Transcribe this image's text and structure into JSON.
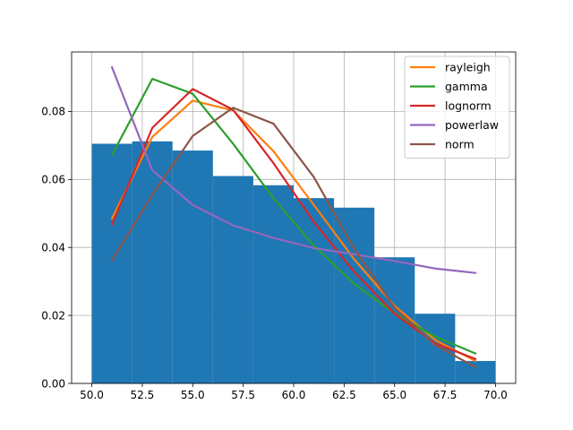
{
  "chart_data": {
    "type": "bar",
    "title": "",
    "xlabel": "",
    "ylabel": "",
    "xlim": [
      49.0,
      71.0
    ],
    "ylim": [
      0.0,
      0.0975
    ],
    "grid": true,
    "legend_position": "top-right",
    "x_ticks": [
      50.0,
      52.5,
      55.0,
      57.5,
      60.0,
      62.5,
      65.0,
      67.5,
      70.0
    ],
    "x_tick_labels": [
      "50.0",
      "52.5",
      "55.0",
      "57.5",
      "60.0",
      "62.5",
      "65.0",
      "67.5",
      "70.0"
    ],
    "y_ticks": [
      0.0,
      0.02,
      0.04,
      0.06,
      0.08
    ],
    "y_tick_labels": [
      "0.00",
      "0.02",
      "0.04",
      "0.06",
      "0.08"
    ],
    "histogram": {
      "color": "#1f77b4",
      "bin_edges": [
        50,
        52,
        54,
        56,
        58,
        60,
        62,
        64,
        66,
        68,
        70
      ],
      "values": [
        0.0705,
        0.0712,
        0.0685,
        0.061,
        0.0583,
        0.0545,
        0.0517,
        0.0371,
        0.0205,
        0.0066
      ]
    },
    "x": [
      51,
      53,
      55,
      57,
      59,
      61,
      63,
      65,
      67,
      69
    ],
    "series": [
      {
        "name": "rayleigh",
        "color": "#ff7f0e",
        "values": [
          0.0485,
          0.0725,
          0.0832,
          0.0803,
          0.0683,
          0.0525,
          0.0365,
          0.0228,
          0.0128,
          0.0066
        ]
      },
      {
        "name": "gamma",
        "color": "#2ca02c",
        "values": [
          0.0672,
          0.0896,
          0.0852,
          0.0705,
          0.0545,
          0.0405,
          0.0293,
          0.0206,
          0.0138,
          0.0088
        ]
      },
      {
        "name": "lognorm",
        "color": "#d62728",
        "values": [
          0.0468,
          0.0752,
          0.0866,
          0.0805,
          0.0648,
          0.0475,
          0.0328,
          0.0205,
          0.0118,
          0.0072
        ]
      },
      {
        "name": "powerlaw",
        "color": "#9467bd",
        "values": [
          0.093,
          0.0627,
          0.0525,
          0.0465,
          0.0428,
          0.0398,
          0.038,
          0.036,
          0.0338,
          0.0325
        ]
      },
      {
        "name": "norm",
        "color": "#8c564b",
        "values": [
          0.0362,
          0.0555,
          0.0728,
          0.0811,
          0.0764,
          0.0607,
          0.0396,
          0.0223,
          0.0113,
          0.0048
        ]
      }
    ]
  }
}
